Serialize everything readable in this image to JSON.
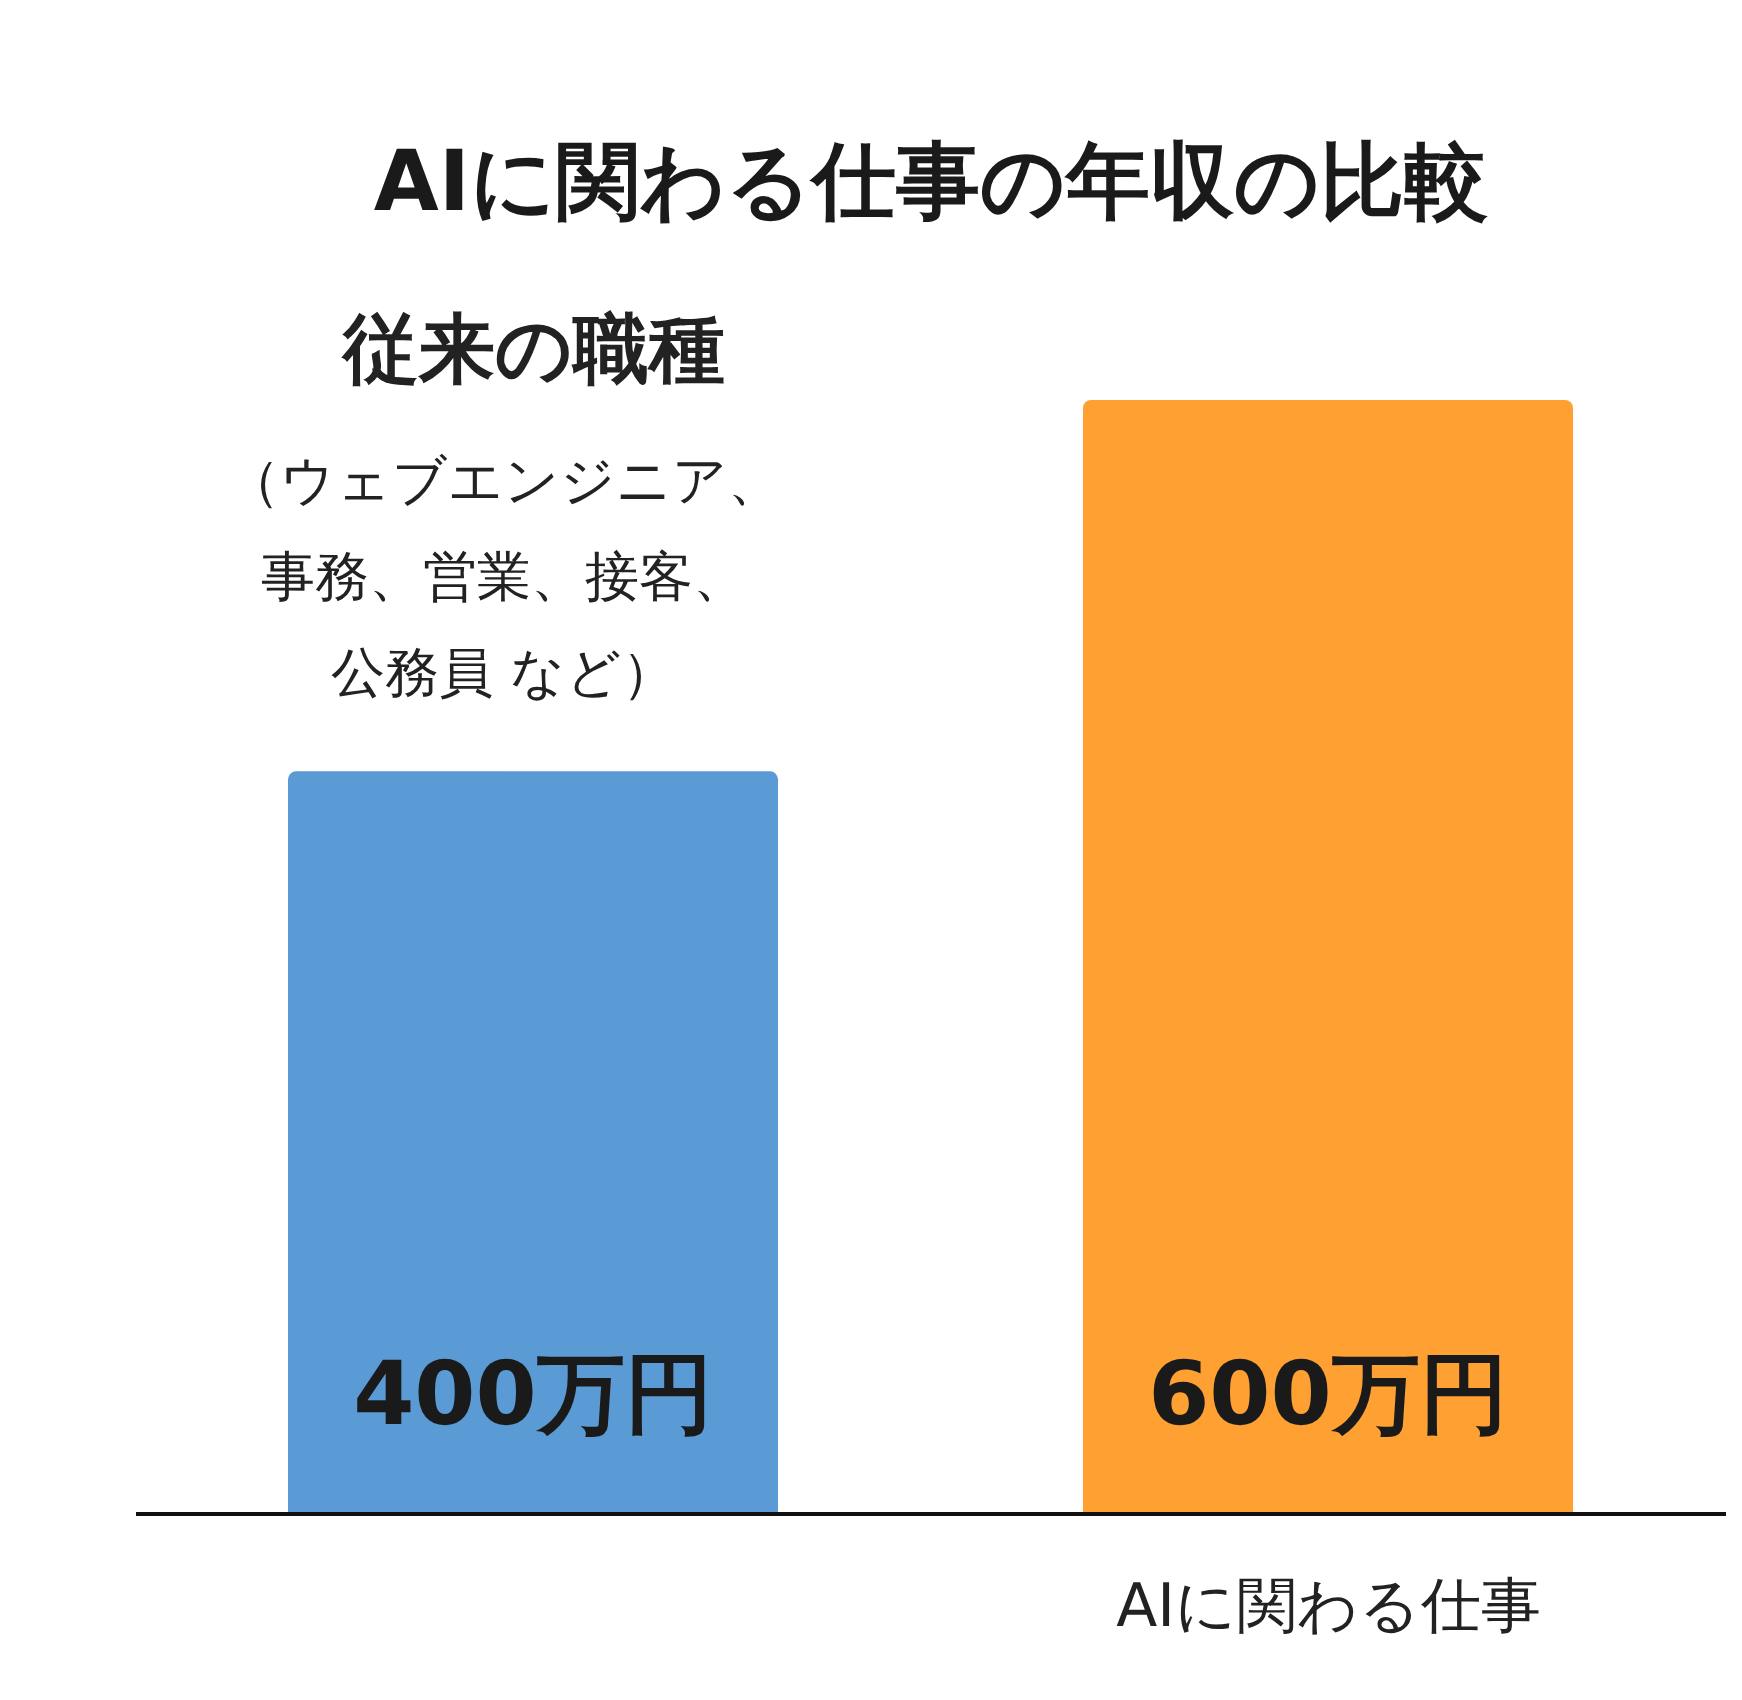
{
  "chart_data": {
    "type": "bar",
    "title": "AIに関わる仕事の年収の比較",
    "categories": [
      "従来の職種",
      "AIに関わる仕事"
    ],
    "values": [
      400,
      600
    ],
    "colors": [
      "#5b9bd5",
      "#ffa033"
    ],
    "value_labels": [
      "400万円",
      "600万円"
    ],
    "annotations": [
      "（ウェブエンジニア、事務、営業、接客、公務員 など）"
    ]
  }
}
